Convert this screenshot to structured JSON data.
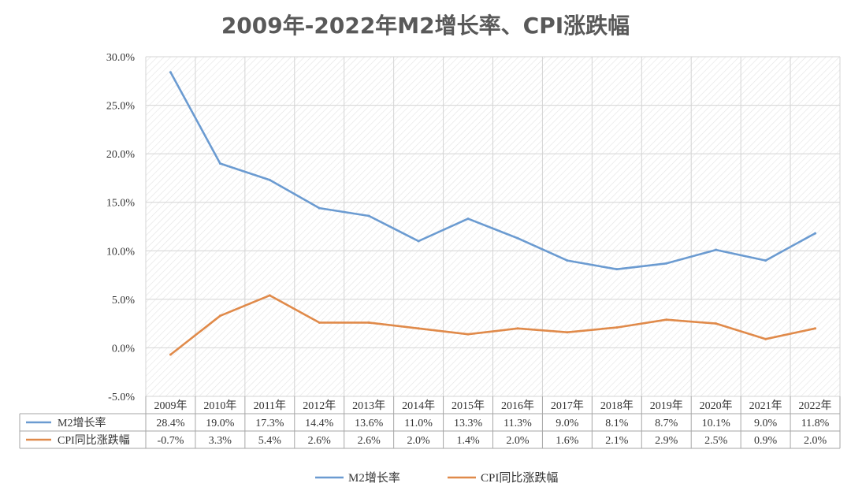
{
  "chart_data": {
    "type": "line",
    "title": "2009年-2022年M2增长率、CPI涨跌幅",
    "categories": [
      "2009年",
      "2010年",
      "2011年",
      "2012年",
      "2013年",
      "2014年",
      "2015年",
      "2016年",
      "2017年",
      "2018年",
      "2019年",
      "2020年",
      "2021年",
      "2022年"
    ],
    "series": [
      {
        "name": "M2增长率",
        "color": "#6b9bd1",
        "values": [
          28.4,
          19.0,
          17.3,
          14.4,
          13.6,
          11.0,
          13.3,
          11.3,
          9.0,
          8.1,
          8.7,
          10.1,
          9.0,
          11.8
        ],
        "labels": [
          "28.4%",
          "19.0%",
          "17.3%",
          "14.4%",
          "13.6%",
          "11.0%",
          "13.3%",
          "11.3%",
          "9.0%",
          "8.1%",
          "8.7%",
          "10.1%",
          "9.0%",
          "11.8%"
        ]
      },
      {
        "name": "CPI同比涨跌幅",
        "color": "#e08a4a",
        "values": [
          -0.7,
          3.3,
          5.4,
          2.6,
          2.6,
          2.0,
          1.4,
          2.0,
          1.6,
          2.1,
          2.9,
          2.5,
          0.9,
          2.0
        ],
        "labels": [
          "-0.7%",
          "3.3%",
          "5.4%",
          "2.6%",
          "2.6%",
          "2.0%",
          "1.4%",
          "2.0%",
          "1.6%",
          "2.1%",
          "2.9%",
          "2.5%",
          "0.9%",
          "2.0%"
        ]
      }
    ],
    "ylim": [
      -5,
      30
    ],
    "yticks": [
      "-5.0%",
      "0.0%",
      "5.0%",
      "10.0%",
      "15.0%",
      "20.0%",
      "25.0%",
      "30.0%"
    ],
    "ytick_values": [
      -5,
      0,
      5,
      10,
      15,
      20,
      25,
      30
    ],
    "grid": true,
    "data_table": true,
    "legend": "bottom"
  }
}
